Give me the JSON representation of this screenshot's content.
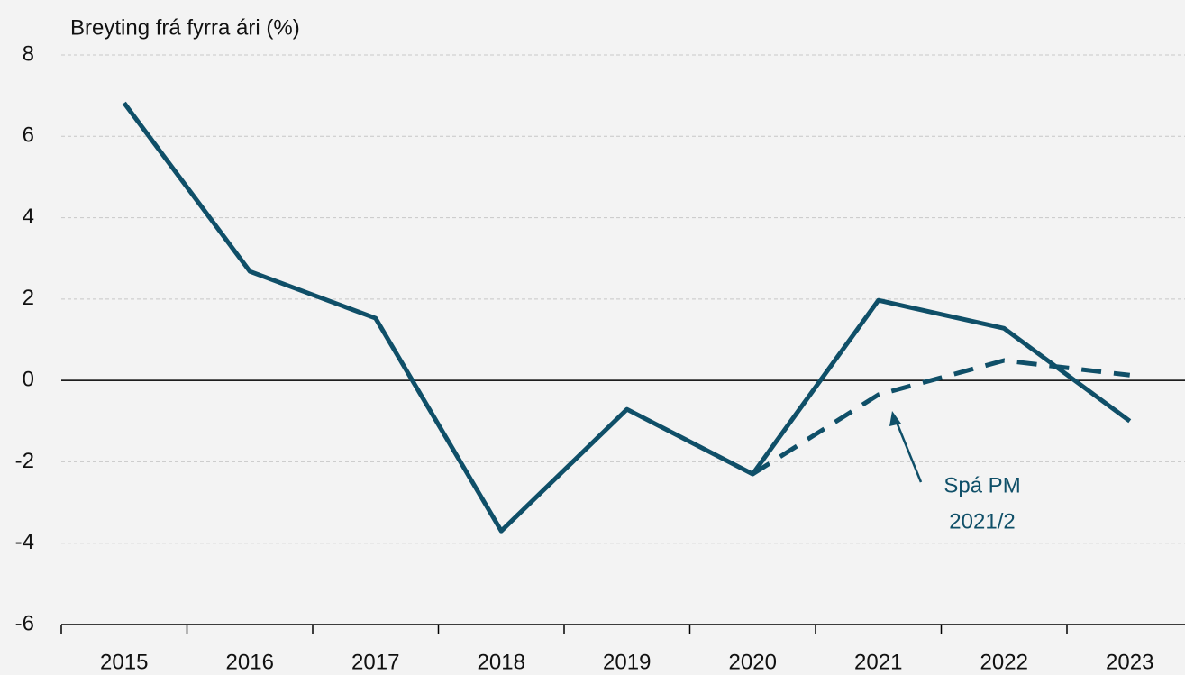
{
  "chart_data": {
    "type": "line",
    "y_axis_label": "Breyting frá fyrra ári (%)",
    "categories": [
      "2015",
      "2016",
      "2017",
      "2018",
      "2019",
      "2020",
      "2021",
      "2022",
      "2023"
    ],
    "series": [
      {
        "color": "#0f4f68",
        "style": "solid",
        "values": [
          6.82,
          2.68,
          1.53,
          -3.7,
          -0.71,
          -2.3,
          1.97,
          1.28,
          -1.0
        ]
      },
      {
        "color": "#0f4f68",
        "style": "dashed",
        "values": [
          null,
          null,
          null,
          null,
          null,
          -2.3,
          -0.35,
          0.49,
          0.13
        ]
      }
    ],
    "annotation": [
      "Spá PM",
      "2021/2"
    ],
    "ylim": [
      -6,
      8
    ],
    "yticks": [
      -6,
      -4,
      -2,
      0,
      2,
      4,
      6,
      8
    ],
    "grid": true
  }
}
